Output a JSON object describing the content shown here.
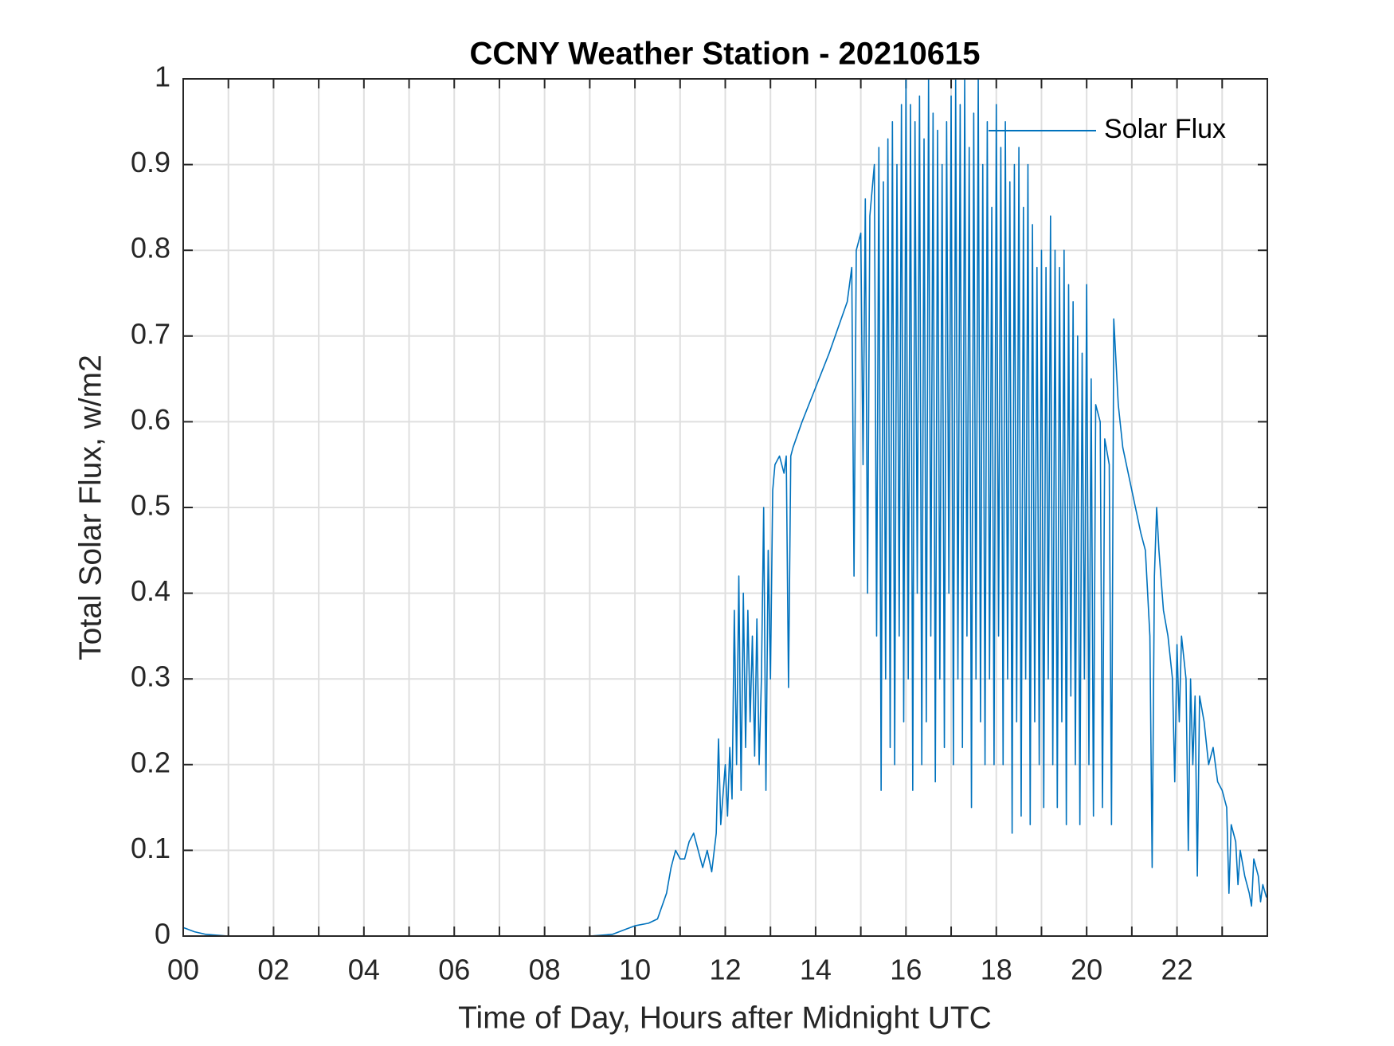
{
  "chart_data": {
    "type": "line",
    "title": "CCNY Weather Station - 20210615",
    "xlabel": "Time of Day, Hours after Midnight UTC",
    "ylabel": "Total Solar Flux, w/m2",
    "xlim": [
      0,
      24
    ],
    "xticks": [
      {
        "value": 0,
        "label": "00"
      },
      {
        "value": 2,
        "label": "02"
      },
      {
        "value": 4,
        "label": "04"
      },
      {
        "value": 6,
        "label": "06"
      },
      {
        "value": 8,
        "label": "08"
      },
      {
        "value": 10,
        "label": "10"
      },
      {
        "value": 12,
        "label": "12"
      },
      {
        "value": 14,
        "label": "14"
      },
      {
        "value": 16,
        "label": "16"
      },
      {
        "value": 18,
        "label": "18"
      },
      {
        "value": 20,
        "label": "20"
      },
      {
        "value": 22,
        "label": "22"
      }
    ],
    "xminorticks": [
      1,
      3,
      5,
      7,
      9,
      11,
      13,
      15,
      17,
      19,
      21,
      23
    ],
    "ylim": [
      0,
      1
    ],
    "yticks": [
      0,
      0.1,
      0.2,
      0.3,
      0.4,
      0.5,
      0.6,
      0.7,
      0.8,
      0.9,
      1
    ],
    "grid": true,
    "legend": "top-right",
    "x": [
      0,
      0.25,
      0.5,
      1,
      2,
      3,
      4,
      5,
      6,
      7,
      8,
      9,
      9.5,
      9.8,
      10,
      10.3,
      10.5,
      10.7,
      10.8,
      10.9,
      11,
      11.1,
      11.2,
      11.3,
      11.4,
      11.5,
      11.6,
      11.7,
      11.8,
      11.85,
      11.9,
      12,
      12.05,
      12.1,
      12.15,
      12.2,
      12.25,
      12.3,
      12.35,
      12.4,
      12.45,
      12.5,
      12.55,
      12.6,
      12.65,
      12.7,
      12.75,
      12.8,
      12.85,
      12.9,
      12.95,
      13,
      13.05,
      13.1,
      13.2,
      13.3,
      13.35,
      13.4,
      13.45,
      13.5,
      13.7,
      14,
      14.3,
      14.5,
      14.7,
      14.75,
      14.8,
      14.85,
      14.9,
      15,
      15.05,
      15.1,
      15.15,
      15.2,
      15.3,
      15.35,
      15.4,
      15.45,
      15.5,
      15.55,
      15.6,
      15.65,
      15.7,
      15.75,
      15.8,
      15.85,
      15.9,
      15.95,
      16,
      16.05,
      16.1,
      16.15,
      16.2,
      16.25,
      16.3,
      16.35,
      16.4,
      16.45,
      16.5,
      16.55,
      16.6,
      16.65,
      16.7,
      16.75,
      16.8,
      16.85,
      16.9,
      16.95,
      17,
      17.05,
      17.1,
      17.15,
      17.2,
      17.25,
      17.3,
      17.35,
      17.4,
      17.45,
      17.5,
      17.55,
      17.6,
      17.65,
      17.7,
      17.75,
      17.8,
      17.85,
      17.9,
      17.95,
      18,
      18.05,
      18.1,
      18.15,
      18.2,
      18.25,
      18.3,
      18.35,
      18.4,
      18.45,
      18.5,
      18.55,
      18.6,
      18.65,
      18.7,
      18.75,
      18.8,
      18.85,
      18.9,
      18.95,
      19,
      19.05,
      19.1,
      19.15,
      19.2,
      19.25,
      19.3,
      19.35,
      19.4,
      19.45,
      19.5,
      19.55,
      19.6,
      19.65,
      19.7,
      19.75,
      19.8,
      19.85,
      19.9,
      19.95,
      20,
      20.05,
      20.1,
      20.15,
      20.2,
      20.3,
      20.35,
      20.4,
      20.5,
      20.55,
      20.6,
      20.7,
      20.8,
      21,
      21.2,
      21.3,
      21.4,
      21.45,
      21.5,
      21.55,
      21.6,
      21.7,
      21.8,
      21.9,
      21.95,
      22,
      22.05,
      22.1,
      22.2,
      22.25,
      22.3,
      22.35,
      22.4,
      22.45,
      22.5,
      22.6,
      22.7,
      22.8,
      22.9,
      23,
      23.1,
      23.15,
      23.2,
      23.3,
      23.35,
      23.4,
      23.5,
      23.6,
      23.65,
      23.7,
      23.8,
      23.85,
      23.9,
      23.98
    ],
    "series": [
      {
        "name": "Solar Flux",
        "color": "#0072bd",
        "values": [
          0.01,
          0.005,
          0.002,
          0,
          0,
          0,
          0,
          0,
          0,
          0,
          0,
          0,
          0.002,
          0.008,
          0.012,
          0.015,
          0.02,
          0.05,
          0.08,
          0.1,
          0.09,
          0.09,
          0.11,
          0.12,
          0.1,
          0.08,
          0.1,
          0.075,
          0.12,
          0.23,
          0.13,
          0.2,
          0.14,
          0.22,
          0.16,
          0.38,
          0.2,
          0.42,
          0.17,
          0.4,
          0.22,
          0.38,
          0.25,
          0.35,
          0.21,
          0.37,
          0.2,
          0.3,
          0.5,
          0.17,
          0.45,
          0.3,
          0.52,
          0.55,
          0.56,
          0.54,
          0.56,
          0.29,
          0.56,
          0.57,
          0.6,
          0.64,
          0.68,
          0.71,
          0.74,
          0.76,
          0.78,
          0.42,
          0.8,
          0.82,
          0.55,
          0.86,
          0.4,
          0.84,
          0.9,
          0.35,
          0.92,
          0.17,
          0.88,
          0.3,
          0.93,
          0.22,
          0.95,
          0.2,
          0.9,
          0.35,
          0.97,
          0.25,
          1,
          0.3,
          0.97,
          0.17,
          0.95,
          0.4,
          0.98,
          0.2,
          0.93,
          0.25,
          1,
          0.35,
          0.96,
          0.18,
          0.94,
          0.3,
          0.9,
          0.22,
          0.95,
          0.4,
          0.98,
          0.2,
          1,
          0.3,
          0.97,
          0.22,
          1,
          0.35,
          0.92,
          0.15,
          0.96,
          0.3,
          1,
          0.25,
          0.9,
          0.2,
          0.95,
          0.3,
          0.85,
          0.2,
          0.97,
          0.35,
          0.92,
          0.2,
          0.95,
          0.3,
          0.88,
          0.12,
          0.9,
          0.25,
          0.92,
          0.14,
          0.85,
          0.3,
          0.9,
          0.13,
          0.83,
          0.25,
          0.78,
          0.2,
          0.8,
          0.15,
          0.78,
          0.3,
          0.84,
          0.2,
          0.8,
          0.15,
          0.78,
          0.25,
          0.8,
          0.13,
          0.76,
          0.28,
          0.74,
          0.2,
          0.7,
          0.13,
          0.68,
          0.3,
          0.76,
          0.2,
          0.65,
          0.14,
          0.62,
          0.6,
          0.15,
          0.58,
          0.55,
          0.13,
          0.72,
          0.62,
          0.57,
          0.52,
          0.47,
          0.45,
          0.35,
          0.08,
          0.42,
          0.5,
          0.45,
          0.38,
          0.35,
          0.3,
          0.18,
          0.34,
          0.25,
          0.35,
          0.3,
          0.1,
          0.3,
          0.2,
          0.28,
          0.07,
          0.28,
          0.25,
          0.2,
          0.22,
          0.18,
          0.17,
          0.15,
          0.05,
          0.13,
          0.11,
          0.06,
          0.1,
          0.07,
          0.05,
          0.035,
          0.09,
          0.07,
          0.04,
          0.06,
          0.045
        ]
      }
    ]
  }
}
